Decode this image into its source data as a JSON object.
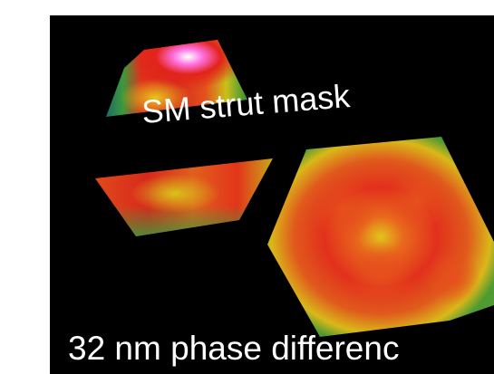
{
  "figure": {
    "mask_label": "SM strut mask",
    "caption": "32 nm phase differenc",
    "background_color": "#000000",
    "colors": {
      "peak": "#ffffff",
      "high": "#ff4fd0",
      "mid_red": "#e2231a",
      "orange": "#f07a1c",
      "yellow": "#d9c81a",
      "green": "#2f9a3a",
      "teal": "#1f6f6a"
    },
    "segments": [
      "top-trapezoid-segment",
      "middle-trapezoid-segment",
      "hexagon-segment"
    ]
  }
}
